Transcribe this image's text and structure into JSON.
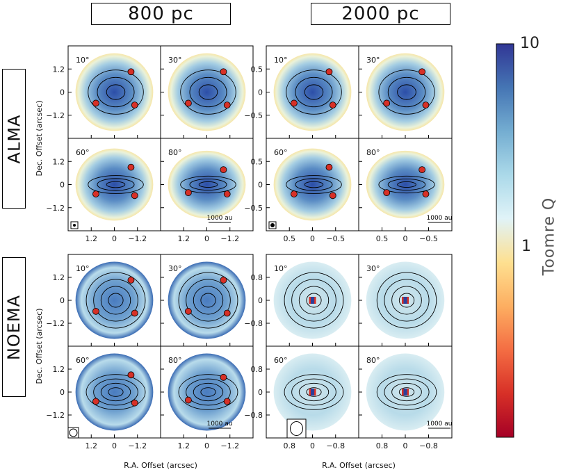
{
  "columns": {
    "left": "800 pc",
    "right": "2000 pc"
  },
  "rows": {
    "top": "ALMA",
    "bottom": "NOEMA"
  },
  "colorbar": {
    "label": "Toomre Q",
    "max_label": "10",
    "mid_label": "1",
    "scale": "log",
    "range": [
      0.1,
      10
    ],
    "colors": [
      "#a50026",
      "#d73027",
      "#f46d43",
      "#fdae61",
      "#fee090",
      "#e0f3f8",
      "#abd9e9",
      "#74add1",
      "#4575b4",
      "#313695"
    ]
  },
  "axes": {
    "ylabel": "Dec. Offset (arcsec)",
    "xlabel": "R.A. Offset (arcsec)",
    "ticks_800": [
      "1.2",
      "0",
      "−1.2"
    ],
    "ticks_alma_2000_y": [
      "0.5",
      "0",
      "−0.5"
    ],
    "ticks_alma_2000_x": [
      "0.5",
      "0",
      "−0.5"
    ],
    "ticks_noema_2000_y": [
      "0.8",
      "0",
      "−0.8"
    ],
    "ticks_noema_2000_x": [
      "0.8",
      "0",
      "−0.8"
    ]
  },
  "scalebar": "1000 au",
  "chart_data": [
    {
      "type": "heatmap",
      "survey": "ALMA",
      "distance": "800 pc",
      "panels": [
        "10°",
        "30°",
        "60°",
        "80°"
      ],
      "xlim": [
        1.6,
        -1.6
      ],
      "ylim": [
        -1.6,
        1.6
      ]
    },
    {
      "type": "heatmap",
      "survey": "ALMA",
      "distance": "2000 pc",
      "panels": [
        "10°",
        "30°",
        "60°",
        "80°"
      ],
      "xlim": [
        0.85,
        -0.85
      ],
      "ylim": [
        -0.85,
        0.85
      ]
    },
    {
      "type": "heatmap",
      "survey": "NOEMA",
      "distance": "800 pc",
      "panels": [
        "10°",
        "30°",
        "60°",
        "80°"
      ],
      "xlim": [
        1.6,
        -1.6
      ],
      "ylim": [
        -1.6,
        1.6
      ]
    },
    {
      "type": "heatmap",
      "survey": "NOEMA",
      "distance": "2000 pc",
      "panels": [
        "10°",
        "30°",
        "60°",
        "80°"
      ],
      "xlim": [
        1.1,
        -1.1
      ],
      "ylim": [
        -1.1,
        1.1
      ]
    }
  ]
}
